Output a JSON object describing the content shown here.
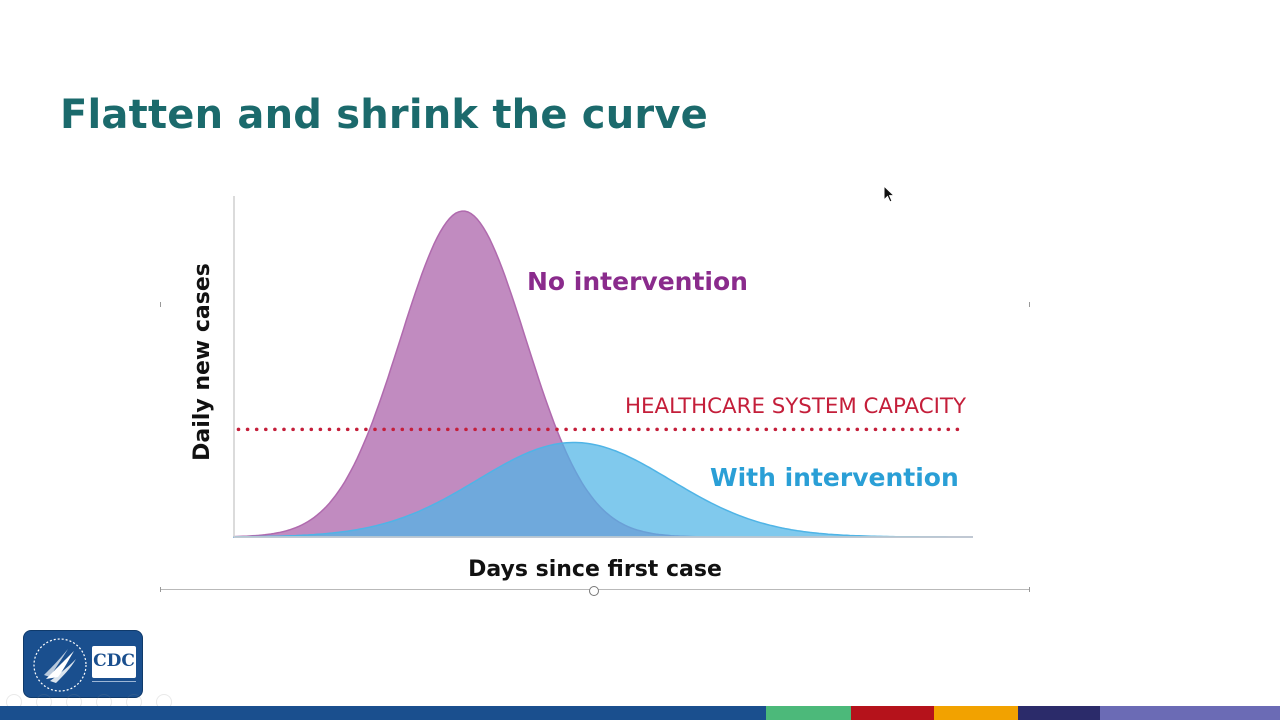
{
  "slide": {
    "title": "Flatten and shrink the curve"
  },
  "chart_data": {
    "type": "area",
    "xlabel": "Days since first case",
    "ylabel": "Daily new cases",
    "annotations": {
      "no_intervention": "No intervention",
      "capacity": "HEALTHCARE SYSTEM CAPACITY",
      "with_intervention": "With intervention"
    },
    "series": [
      {
        "name": "No intervention",
        "peak_day": 0.31,
        "peak": 1.0,
        "spread": 0.085,
        "color": "#b06aae"
      },
      {
        "name": "With intervention",
        "peak_day": 0.46,
        "peak": 0.29,
        "spread": 0.13,
        "color": "#4fb4e6"
      }
    ],
    "capacity_level": 0.33,
    "capacity_color": "#c41e3a",
    "label_colors": {
      "no_intervention": "#8a2b8c",
      "with_intervention": "#2a9fd6",
      "capacity": "#c41e3a",
      "axis_text": "#111111"
    },
    "grid": false
  },
  "logo": {
    "text": "CDC"
  },
  "footer": {
    "colors": [
      "#1a4f8e",
      "#4cb97a",
      "#b5121b",
      "#f2a200",
      "#2b2b6a",
      "#6b6bb5"
    ]
  }
}
